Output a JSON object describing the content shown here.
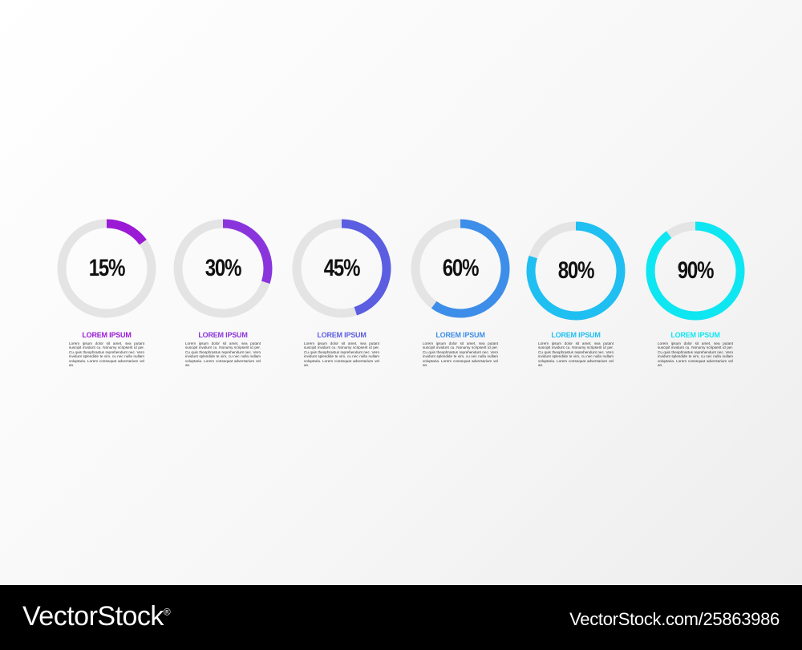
{
  "items": [
    {
      "percent": 15,
      "label": "15%",
      "title": "LOREM IPSUM",
      "color": "#9a1ad6",
      "body": "Lorem ipsum dolor sit amet, sea putant suscipit invidunt cu. Nonumy scripserit id per. Cu quis theophrastus reprehendunt nec. Vero invidunt splendide te vim, cu nec nulla nullam voluptaria. Lorem consequat adversarium vel an."
    },
    {
      "percent": 30,
      "label": "30%",
      "title": "LOREM IPSUM",
      "color": "#8a35dc",
      "body": "Lorem ipsum dolor sit amet, sea putant suscipit invidunt cu. Nonumy scripserit id per. Cu quis theophrastus reprehendunt nec. Vero invidunt splendide te vim, cu nec nulla nullam voluptaria. Lorem consequat adversarium vel an."
    },
    {
      "percent": 45,
      "label": "45%",
      "title": "LOREM IPSUM",
      "color": "#5b5ee0",
      "body": "Lorem ipsum dolor sit amet, sea putant suscipit invidunt cu. Nonumy scripserit id per. Cu quis theophrastus reprehendunt nec. Vero invidunt splendide te vim, cu nec nulla nullam voluptaria. Lorem consequat adversarium vel an."
    },
    {
      "percent": 60,
      "label": "60%",
      "title": "LOREM IPSUM",
      "color": "#3d8ee8",
      "body": "Lorem ipsum dolor sit amet, sea putant suscipit invidunt cu. Nonumy scripserit id per. Cu quis theophrastus reprehendunt nec. Vero invidunt splendide te vim, cu nec nulla nullam voluptaria. Lorem consequat adversarium vel an."
    },
    {
      "percent": 80,
      "label": "80%",
      "title": "LOREM IPSUM",
      "color": "#1fbff2",
      "body": "Lorem ipsum dolor sit amet, sea putant suscipit invidunt cu. Nonumy scripserit id per. Cu quis theophrastus reprehendunt nec. Vero invidunt splendide te vim, cu nec nulla nullam voluptaria. Lorem consequat adversarium vel an."
    },
    {
      "percent": 90,
      "label": "90%",
      "title": "LOREM IPSUM",
      "color": "#0ee6f2",
      "body": "Lorem ipsum dolor sit amet, sea putant suscipit invidunt cu. Nonumy scripserit id per. Cu quis theophrastus reprehendunt nec. Vero invidunt splendide te vim, cu nec nulla nullam voluptaria. Lorem consequat adversarium vel an."
    }
  ],
  "track_color": "#e4e4e4",
  "footer": {
    "brand": "VectorStock",
    "brand_mark": "®",
    "id_text": "VectorStock.com/25863986"
  }
}
